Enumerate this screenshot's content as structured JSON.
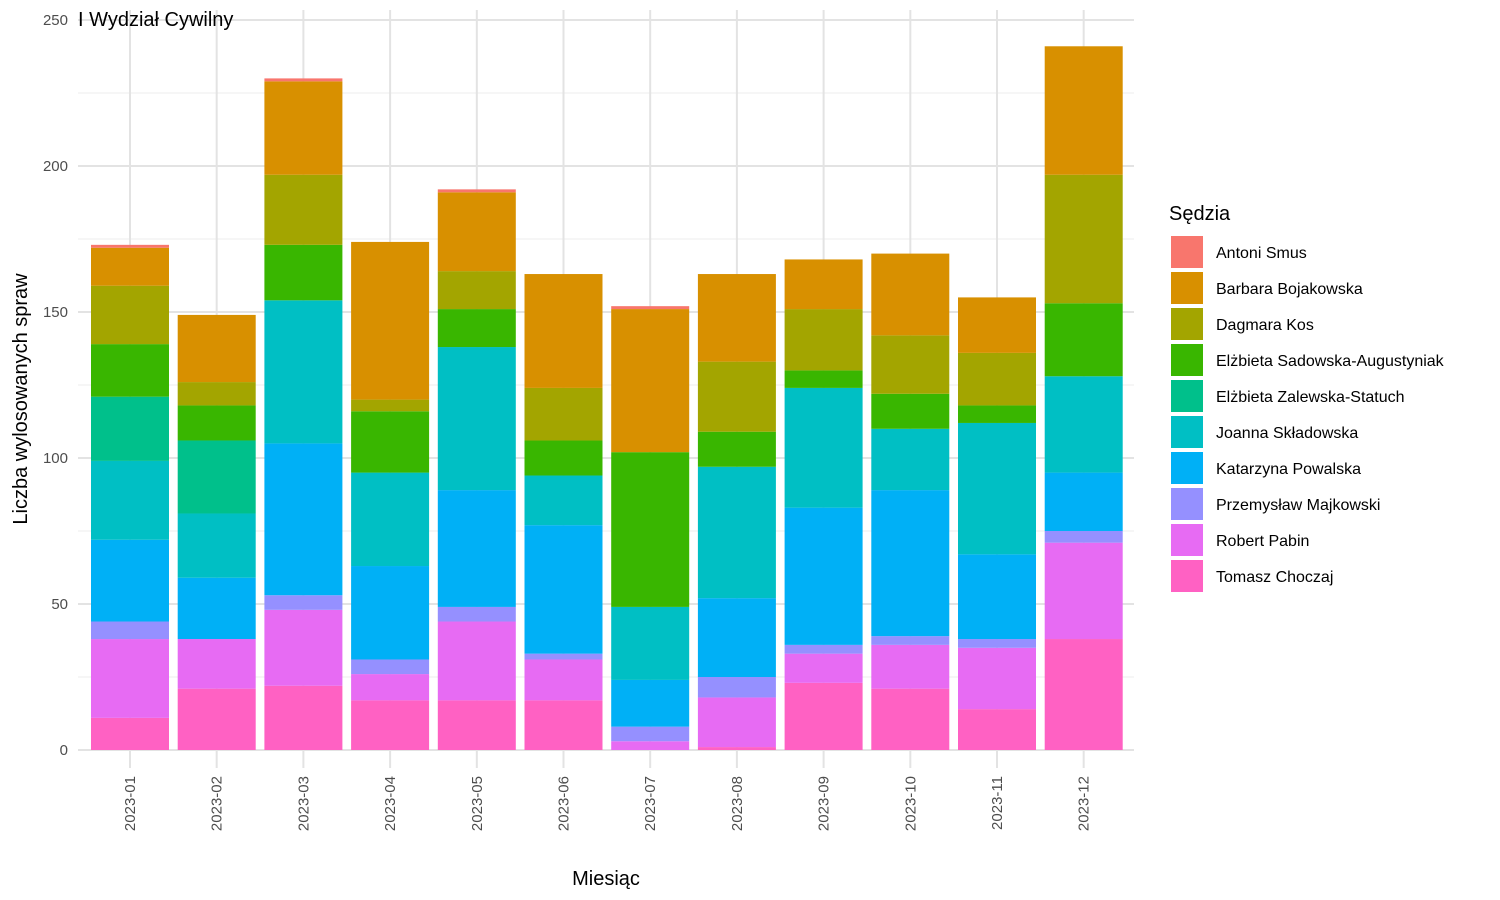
{
  "chart_data": {
    "type": "bar",
    "stacked": true,
    "title": "I Wydział Cywilny",
    "xlabel": "Miesiąc",
    "ylabel": "Liczba wylosowanych spraw",
    "ylim": [
      0,
      250
    ],
    "yticks": [
      0,
      50,
      100,
      150,
      200,
      250
    ],
    "grid": true,
    "legend": {
      "title": "Sędzia",
      "position": "right"
    },
    "categories": [
      "2023-01",
      "2023-02",
      "2023-03",
      "2023-04",
      "2023-05",
      "2023-06",
      "2023-07",
      "2023-08",
      "2023-09",
      "2023-10",
      "2023-11",
      "2023-12"
    ],
    "series": [
      {
        "name": "Tomasz Choczaj",
        "color": "#FF61C3",
        "values": [
          11,
          21,
          22,
          17,
          17,
          17,
          0,
          1,
          23,
          21,
          14,
          38
        ]
      },
      {
        "name": "Robert Pabin",
        "color": "#E76BF3",
        "values": [
          27,
          17,
          26,
          9,
          27,
          14,
          3,
          17,
          10,
          15,
          21,
          33
        ]
      },
      {
        "name": "Przemysław Majkowski",
        "color": "#9590FF",
        "values": [
          6,
          0,
          5,
          5,
          5,
          2,
          5,
          7,
          3,
          3,
          3,
          4
        ]
      },
      {
        "name": "Katarzyna Powalska",
        "color": "#00B0F6",
        "values": [
          28,
          21,
          52,
          32,
          40,
          44,
          16,
          27,
          47,
          50,
          29,
          20
        ]
      },
      {
        "name": "Joanna Składowska",
        "color": "#00BFC4",
        "values": [
          27,
          22,
          49,
          32,
          49,
          17,
          25,
          45,
          41,
          21,
          45,
          33
        ]
      },
      {
        "name": "Elżbieta Zalewska-Statuch",
        "color": "#00C08B",
        "values": [
          22,
          25,
          0,
          0,
          0,
          0,
          0,
          0,
          0,
          0,
          0,
          0
        ]
      },
      {
        "name": "Elżbieta Sadowska-Augustyniak",
        "color": "#39B600",
        "values": [
          18,
          12,
          19,
          21,
          13,
          12,
          53,
          12,
          6,
          12,
          6,
          25
        ]
      },
      {
        "name": "Dagmara Kos",
        "color": "#A3A500",
        "values": [
          20,
          8,
          24,
          4,
          13,
          18,
          0,
          24,
          21,
          20,
          18,
          44
        ]
      },
      {
        "name": "Barbara Bojakowska",
        "color": "#D89000",
        "values": [
          13,
          23,
          32,
          54,
          27,
          39,
          49,
          30,
          17,
          28,
          19,
          44
        ]
      },
      {
        "name": "Antoni Smus",
        "color": "#F8766D",
        "values": [
          1,
          0,
          1,
          0,
          1,
          0,
          1,
          0,
          0,
          0,
          0,
          0
        ]
      }
    ]
  }
}
